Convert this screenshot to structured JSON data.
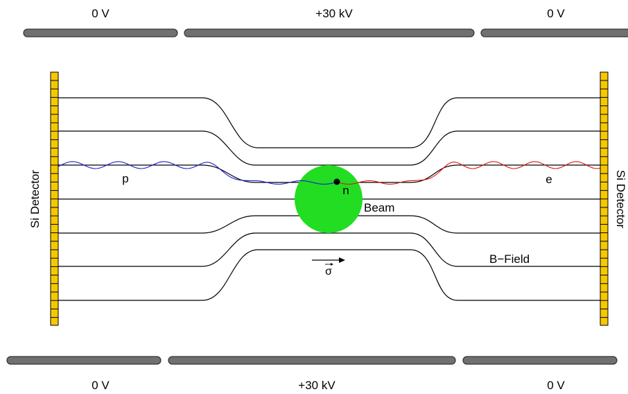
{
  "voltages": {
    "top_left": "0 V",
    "top_center": "+30 kV",
    "top_right": "0 V",
    "bottom_left": "0 V",
    "bottom_center": "+30 kV",
    "bottom_right": "0 V"
  },
  "detectors": {
    "left_label": "Si Detector",
    "right_label": "Si Detector"
  },
  "particles": {
    "proton_label": "p",
    "neutron_label": "n",
    "electron_label": "e"
  },
  "labels": {
    "beam": "Beam",
    "b_field": "B−Field",
    "spin": "σ"
  },
  "colors": {
    "electrode": "#707070",
    "detector": "#f5c800",
    "beam": "#22dd22",
    "proton_track": "#1a1acc",
    "electron_track": "#dd1111"
  }
}
